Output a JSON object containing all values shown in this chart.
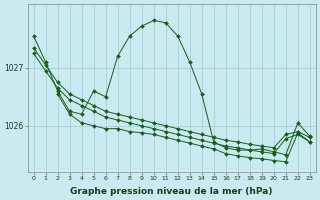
{
  "background_color": "#c8eaf0",
  "plot_bg_color": "#c8eaf0",
  "line_color": "#1a5c1a",
  "grid_color": "#9ecfcf",
  "xlabel": "Graphe pression niveau de la mer (hPa)",
  "xlabel_fontsize": 6.5,
  "xtick_fontsize": 4.5,
  "ytick_fontsize": 5.5,
  "xticks": [
    0,
    1,
    2,
    3,
    4,
    5,
    6,
    7,
    8,
    9,
    10,
    11,
    12,
    13,
    14,
    15,
    16,
    17,
    18,
    19,
    20,
    21,
    22,
    23
  ],
  "ytick_labels": [
    "1026",
    "1027"
  ],
  "ytick_values": [
    1026,
    1027
  ],
  "ylim": [
    1025.2,
    1028.1
  ],
  "xlim": [
    -0.5,
    23.5
  ],
  "series": [
    {
      "x": [
        0,
        1,
        2,
        3,
        4,
        5,
        6,
        7,
        8,
        9,
        10,
        11,
        12,
        13,
        14,
        15,
        16,
        17,
        18,
        19,
        20,
        21,
        22,
        23
      ],
      "y": [
        1027.35,
        1027.05,
        1026.75,
        1026.55,
        1026.45,
        1026.35,
        1026.25,
        1026.2,
        1026.15,
        1026.1,
        1026.05,
        1026.0,
        1025.95,
        1025.9,
        1025.85,
        1025.8,
        1025.75,
        1025.72,
        1025.68,
        1025.65,
        1025.62,
        1025.85,
        1025.9,
        1025.8
      ]
    },
    {
      "x": [
        0,
        1,
        2,
        3,
        4,
        5,
        6,
        7,
        8,
        9,
        10,
        11,
        12,
        13,
        14,
        15,
        16,
        17,
        18,
        19,
        20,
        21,
        22,
        23
      ],
      "y": [
        1027.25,
        1026.95,
        1026.65,
        1026.45,
        1026.35,
        1026.25,
        1026.15,
        1026.1,
        1026.05,
        1026.0,
        1025.95,
        1025.9,
        1025.85,
        1025.8,
        1025.75,
        1025.7,
        1025.65,
        1025.62,
        1025.58,
        1025.55,
        1025.52,
        1025.78,
        1025.85,
        1025.72
      ]
    },
    {
      "x": [
        0,
        1,
        2,
        3,
        4,
        5,
        6,
        7,
        8,
        9,
        10,
        11,
        12,
        13,
        14,
        15,
        16,
        17,
        18,
        19,
        20,
        21,
        22,
        23
      ],
      "y": [
        1027.55,
        1027.1,
        1026.6,
        1026.25,
        1026.2,
        1026.6,
        1026.5,
        1027.2,
        1027.55,
        1027.72,
        1027.82,
        1027.78,
        1027.55,
        1027.1,
        1026.55,
        1025.72,
        1025.62,
        1025.58,
        1025.58,
        1025.6,
        1025.55,
        1025.5,
        1026.05,
        1025.82
      ]
    },
    {
      "x": [
        2,
        3,
        4,
        5,
        6,
        7,
        8,
        9,
        10,
        11,
        12,
        13,
        14,
        15,
        16,
        17,
        18,
        19,
        20,
        21,
        22,
        23
      ],
      "y": [
        1026.55,
        1026.2,
        1026.05,
        1026.0,
        1025.95,
        1025.95,
        1025.9,
        1025.88,
        1025.85,
        1025.8,
        1025.75,
        1025.7,
        1025.65,
        1025.6,
        1025.52,
        1025.48,
        1025.45,
        1025.43,
        1025.4,
        1025.38,
        1025.88,
        1025.72
      ]
    }
  ]
}
